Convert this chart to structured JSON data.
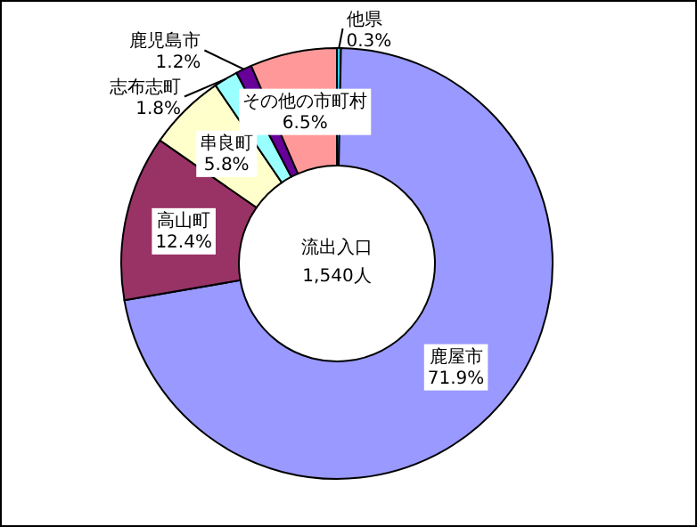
{
  "chart_data": {
    "type": "donut",
    "title": "流出入口\n1,540人",
    "categories": [
      "他県",
      "鹿屋市",
      "高山町",
      "串良町",
      "志布志町",
      "鹿児島市",
      "その他の市町村"
    ],
    "values": [
      0.3,
      71.9,
      12.4,
      5.8,
      1.8,
      1.2,
      6.5
    ],
    "value_labels": [
      "0.3%",
      "71.9%",
      "12.4%",
      "5.8%",
      "1.8%",
      "1.2%",
      "6.5%"
    ],
    "colors": [
      "#33ccff",
      "#9999ff",
      "#993366",
      "#ffffcc",
      "#99ffff",
      "#660099",
      "#ff9999"
    ]
  }
}
